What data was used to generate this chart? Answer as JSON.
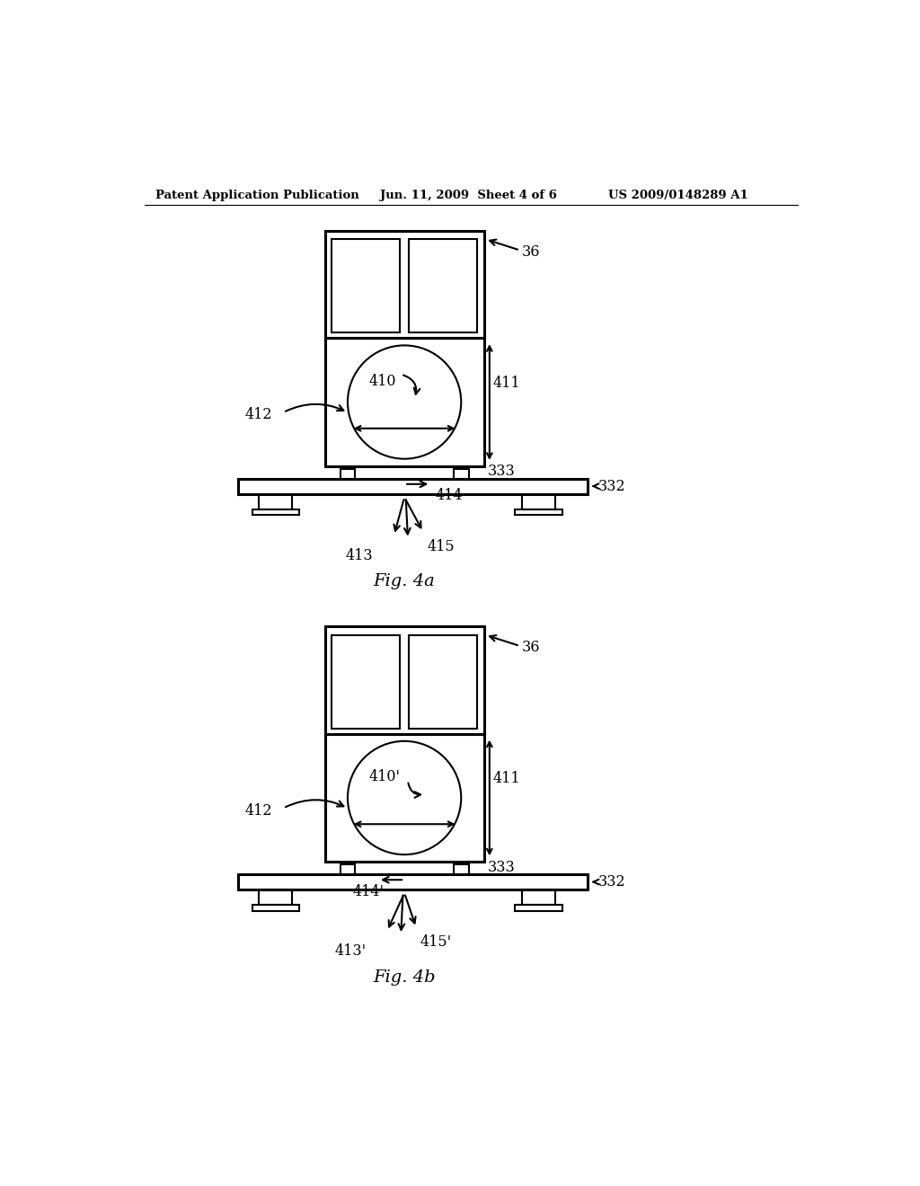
{
  "bg_color": "#ffffff",
  "header_left": "Patent Application Publication",
  "header_mid": "Jun. 11, 2009  Sheet 4 of 6",
  "header_right": "US 2009/0148289 A1",
  "fig4a_label": "Fig. 4a",
  "fig4b_label": "Fig. 4b",
  "label_36a": "36",
  "label_36b": "36",
  "label_411a": "411",
  "label_411b": "411",
  "label_410a": "410",
  "label_410b": "410'",
  "label_412a": "412",
  "label_412b": "412",
  "label_333a": "333",
  "label_333b": "333",
  "label_332a": "332",
  "label_332b": "332",
  "label_414a": "414",
  "label_414b": "414'",
  "label_413a": "413",
  "label_413b": "413'",
  "label_415a": "415",
  "label_415b": "415'"
}
